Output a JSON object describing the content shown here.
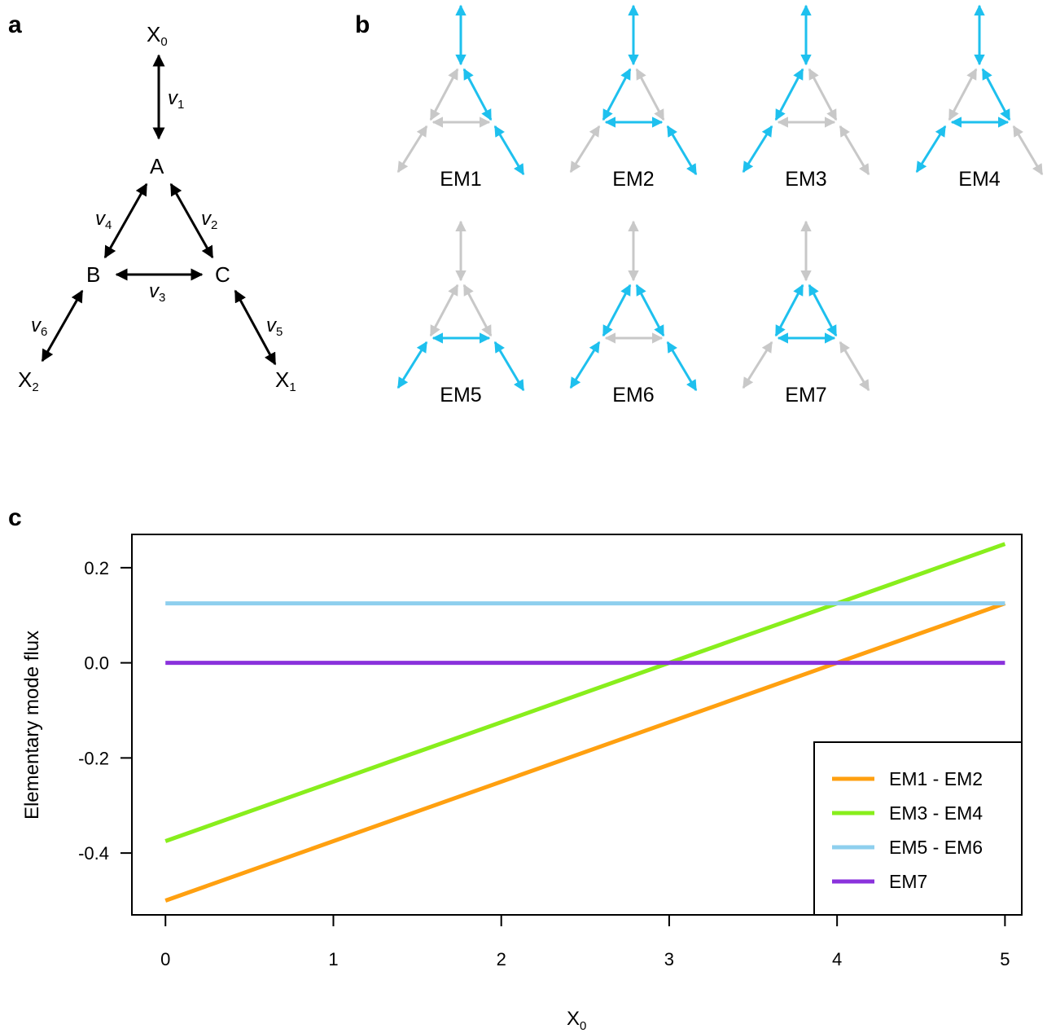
{
  "panels": {
    "a": "a",
    "b": "b",
    "c": "c"
  },
  "network": {
    "nodes": {
      "X0": {
        "main": "X",
        "sub": "0"
      },
      "A": {
        "main": "A",
        "sub": ""
      },
      "B": {
        "main": "B",
        "sub": ""
      },
      "C": {
        "main": "C",
        "sub": ""
      },
      "X1": {
        "main": "X",
        "sub": "1"
      },
      "X2": {
        "main": "X",
        "sub": "2"
      }
    },
    "reactions": [
      {
        "main": "v",
        "sub": "1"
      },
      {
        "main": "v",
        "sub": "2"
      },
      {
        "main": "v",
        "sub": "3"
      },
      {
        "main": "v",
        "sub": "4"
      },
      {
        "main": "v",
        "sub": "5"
      },
      {
        "main": "v",
        "sub": "6"
      }
    ]
  },
  "elementary_modes": {
    "active_color": "#1ec0ee",
    "inactive_color": "#c8c8c8",
    "modes": [
      {
        "label": "EM1",
        "active": [
          "v1",
          "v2",
          "v5"
        ]
      },
      {
        "label": "EM2",
        "active": [
          "v1",
          "v4",
          "v3",
          "v5"
        ]
      },
      {
        "label": "EM3",
        "active": [
          "v1",
          "v4",
          "v6"
        ]
      },
      {
        "label": "EM4",
        "active": [
          "v1",
          "v2",
          "v3",
          "v6"
        ]
      },
      {
        "label": "EM5",
        "active": [
          "v5",
          "v3",
          "v6"
        ]
      },
      {
        "label": "EM6",
        "active": [
          "v5",
          "v2",
          "v4",
          "v6"
        ]
      },
      {
        "label": "EM7",
        "active": [
          "v2",
          "v3",
          "v4"
        ]
      }
    ]
  },
  "chart_data": {
    "type": "line",
    "xlabel": {
      "main": "X",
      "sub": "0"
    },
    "ylabel": "Elementary mode flux",
    "xlim": [
      -0.2,
      5.1
    ],
    "ylim": [
      -0.53,
      0.27
    ],
    "xticks": [
      "0",
      "1",
      "2",
      "3",
      "4",
      "5"
    ],
    "yticks": [
      "0.2",
      "0.0",
      "-0.2",
      "-0.4"
    ],
    "grid": false,
    "legend_position": "bottom-right",
    "series": [
      {
        "name": "EM1 - EM2",
        "color": "#ffa010",
        "x": [
          0,
          5
        ],
        "y": [
          -0.5,
          0.125
        ]
      },
      {
        "name": "EM3 - EM4",
        "color": "#88ee1c",
        "x": [
          0,
          5
        ],
        "y": [
          -0.375,
          0.25
        ]
      },
      {
        "name": "EM5 - EM6",
        "color": "#8ecfee",
        "x": [
          0,
          5
        ],
        "y": [
          0.125,
          0.125
        ]
      },
      {
        "name": "EM7",
        "color": "#8a32dc",
        "x": [
          0,
          5
        ],
        "y": [
          0.0,
          0.0
        ]
      }
    ]
  }
}
